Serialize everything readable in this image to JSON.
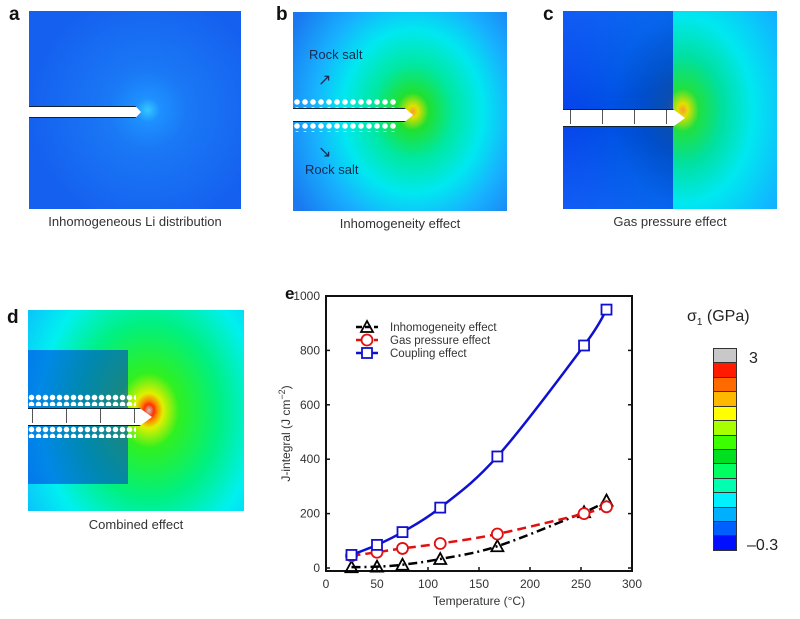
{
  "panels": [
    {
      "letter": "a",
      "caption": "Inhomogeneous Li distribution"
    },
    {
      "letter": "b",
      "caption": "Inhomogeneity effect",
      "annotations": [
        "Rock salt",
        "Rock salt"
      ]
    },
    {
      "letter": "c",
      "caption": "Gas pressure effect"
    },
    {
      "letter": "d",
      "caption": "Combined effect"
    },
    {
      "letter": "e"
    }
  ],
  "colorbar": {
    "title_symbol": "σ",
    "title_subscript": "1",
    "title_unit": "(GPa)",
    "max_label": "3",
    "min_label": "–0.3",
    "colors": [
      "#c8c8c8",
      "#ff1a00",
      "#ff6a00",
      "#ffb800",
      "#ffff00",
      "#a8ff00",
      "#3cff00",
      "#00e020",
      "#00ff60",
      "#00ffb0",
      "#00f0ff",
      "#00b0ff",
      "#0060ff",
      "#0010ff"
    ]
  },
  "chart_data": {
    "type": "line",
    "title": "",
    "xlabel": "Temperature (°C)",
    "ylabel": "J-integral (J cm−2)",
    "ylabel_base": "J-integral (J cm",
    "ylabel_sup": "−2",
    "ylabel_end": ")",
    "xlim": [
      0,
      300
    ],
    "ylim": [
      0,
      1000
    ],
    "xticks": [
      0,
      50,
      100,
      150,
      200,
      250,
      300
    ],
    "yticks": [
      0,
      200,
      400,
      600,
      800,
      1000
    ],
    "grid": false,
    "legend_position": "top-left",
    "series": [
      {
        "name": "Inhomogeneity effect",
        "color": "#000000",
        "marker": "triangle",
        "line": "dash-dot",
        "x": [
          25,
          50,
          75,
          112,
          168,
          253,
          275
        ],
        "y": [
          3,
          5,
          12,
          33,
          80,
          205,
          248
        ]
      },
      {
        "name": "Gas pressure effect",
        "color": "#e01010",
        "marker": "circle",
        "line": "dashed",
        "x": [
          25,
          50,
          75,
          112,
          168,
          253,
          275
        ],
        "y": [
          45,
          58,
          72,
          90,
          125,
          200,
          225
        ]
      },
      {
        "name": "Coupling effect",
        "color": "#1010d0",
        "marker": "square",
        "line": "solid",
        "x": [
          25,
          50,
          75,
          112,
          168,
          253,
          275
        ],
        "y": [
          48,
          85,
          132,
          222,
          410,
          818,
          950
        ]
      }
    ]
  }
}
